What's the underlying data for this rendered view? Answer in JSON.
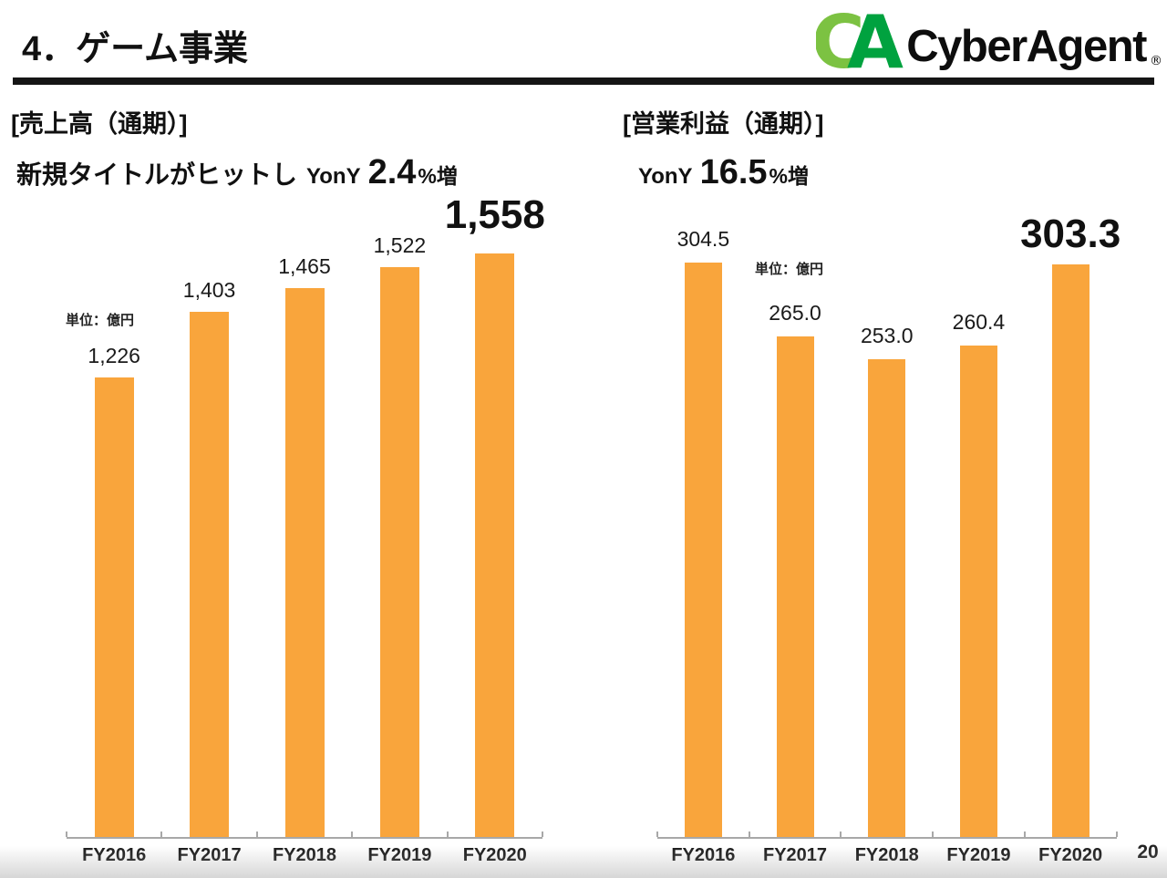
{
  "slide": {
    "title": "4．ゲーム事業",
    "page_number": "20",
    "logo": {
      "mark_letter_c": "C",
      "mark_letter_a": "A",
      "brand": "CyberAgent",
      "registered": "®",
      "mark_color_light": "#7CC242",
      "mark_color_dark": "#00A23F"
    }
  },
  "chart_data": [
    {
      "type": "bar",
      "title": "[売上高（通期）]",
      "subtitle": {
        "prefix": "新規タイトルがヒットし",
        "yony": "YonY",
        "pct": "2.4",
        "suffix": "%増"
      },
      "unit_label": "単位：億円",
      "categories": [
        "FY2016",
        "FY2017",
        "FY2018",
        "FY2019",
        "FY2020"
      ],
      "values": [
        1226,
        1403,
        1465,
        1522,
        1558
      ],
      "value_labels": [
        "1,226",
        "1,403",
        "1,465",
        "1,522",
        "1,558"
      ],
      "highlight_index": 4,
      "bar_color": "#F9A53C",
      "xlabel": "",
      "ylabel": "億円",
      "ylim": [
        0,
        1700
      ],
      "grid": false,
      "legend": "none"
    },
    {
      "type": "bar",
      "title": "[営業利益（通期）]",
      "subtitle": {
        "prefix": "",
        "yony": "YonY",
        "pct": "16.5",
        "suffix": "%増"
      },
      "unit_label": "単位：億円",
      "categories": [
        "FY2016",
        "FY2017",
        "FY2018",
        "FY2019",
        "FY2020"
      ],
      "values": [
        304.5,
        265.0,
        253.0,
        260.4,
        303.3
      ],
      "value_labels": [
        "304.5",
        "265.0",
        "253.0",
        "260.4",
        "303.3"
      ],
      "highlight_index": 4,
      "bar_color": "#F9A53C",
      "xlabel": "",
      "ylabel": "億円",
      "ylim": [
        0,
        330
      ],
      "grid": false,
      "legend": "none"
    }
  ]
}
